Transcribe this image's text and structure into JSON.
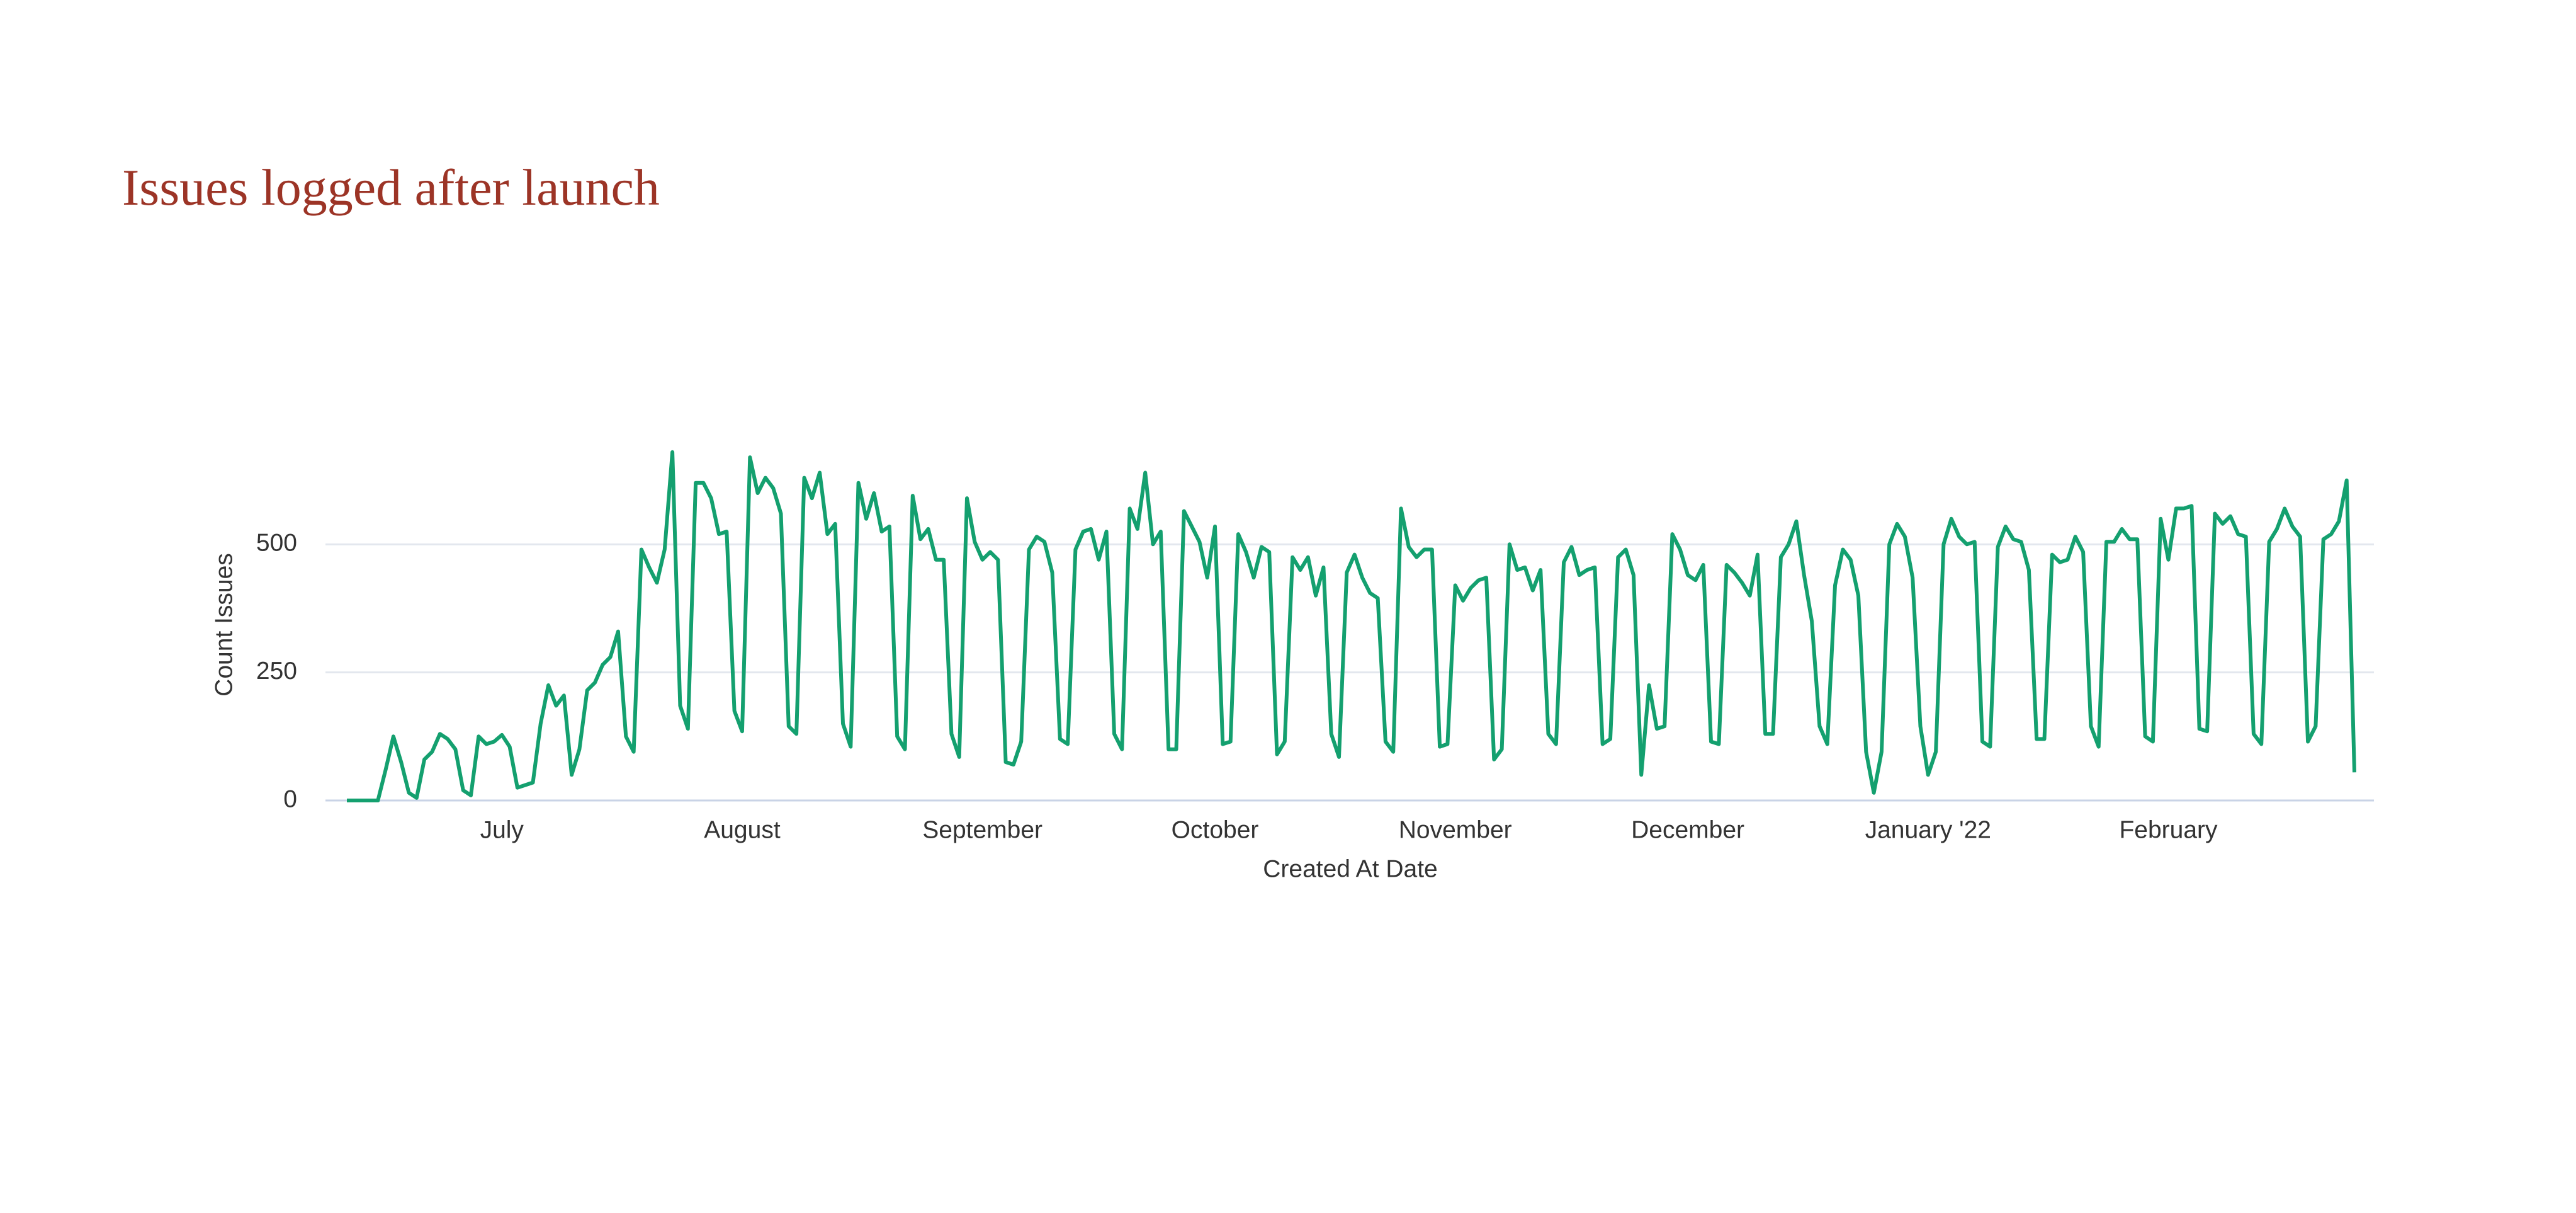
{
  "chart_data": {
    "type": "line",
    "title": "Issues logged after launch",
    "x_label": "Created At Date",
    "y_label": "Count Issues",
    "categories": [
      null,
      null,
      null,
      null,
      null,
      null,
      null,
      null,
      null,
      null,
      null,
      null,
      null,
      null,
      null,
      null,
      null,
      null,
      null,
      null,
      "July",
      null,
      null,
      null,
      null,
      null,
      null,
      null,
      null,
      null,
      null,
      null,
      null,
      null,
      null,
      null,
      null,
      null,
      null,
      null,
      null,
      null,
      null,
      null,
      null,
      null,
      null,
      null,
      null,
      null,
      null,
      "August",
      null,
      null,
      null,
      null,
      null,
      null,
      null,
      null,
      null,
      null,
      null,
      null,
      null,
      null,
      null,
      null,
      null,
      null,
      null,
      null,
      null,
      null,
      null,
      null,
      null,
      null,
      null,
      null,
      null,
      null,
      "September",
      null,
      null,
      null,
      null,
      null,
      null,
      null,
      null,
      null,
      null,
      null,
      null,
      null,
      null,
      null,
      null,
      null,
      null,
      null,
      null,
      null,
      null,
      null,
      null,
      null,
      null,
      null,
      null,
      null,
      "October",
      null,
      null,
      null,
      null,
      null,
      null,
      null,
      null,
      null,
      null,
      null,
      null,
      null,
      null,
      null,
      null,
      null,
      null,
      null,
      null,
      null,
      null,
      null,
      null,
      null,
      null,
      null,
      null,
      null,
      null,
      "November",
      null,
      null,
      null,
      null,
      null,
      null,
      null,
      null,
      null,
      null,
      null,
      null,
      null,
      null,
      null,
      null,
      null,
      null,
      null,
      null,
      null,
      null,
      null,
      null,
      null,
      null,
      null,
      null,
      null,
      "December",
      null,
      null,
      null,
      null,
      null,
      null,
      null,
      null,
      null,
      null,
      null,
      null,
      null,
      null,
      null,
      null,
      null,
      null,
      null,
      null,
      null,
      null,
      null,
      null,
      null,
      null,
      null,
      null,
      null,
      null,
      "January '22",
      null,
      null,
      null,
      null,
      null,
      null,
      null,
      null,
      null,
      null,
      null,
      null,
      null,
      null,
      null,
      null,
      null,
      null,
      null,
      null,
      null,
      null,
      null,
      null,
      null,
      null,
      null,
      null,
      null,
      null,
      "February",
      null,
      null,
      null,
      null,
      null,
      null,
      null,
      null,
      null,
      null,
      null,
      null,
      null,
      null,
      null,
      null,
      null,
      null,
      null,
      null,
      null,
      null,
      null,
      null
    ],
    "series": [
      {
        "name": "Count Issues",
        "color": "#14a06f",
        "values": [
          0,
          0,
          0,
          0,
          0,
          60,
          125,
          75,
          15,
          5,
          80,
          95,
          130,
          120,
          100,
          20,
          10,
          125,
          110,
          115,
          128,
          105,
          25,
          30,
          35,
          150,
          225,
          185,
          205,
          50,
          100,
          215,
          230,
          265,
          280,
          330,
          125,
          95,
          490,
          455,
          425,
          490,
          680,
          185,
          140,
          620,
          620,
          590,
          520,
          525,
          175,
          135,
          670,
          600,
          630,
          610,
          560,
          145,
          130,
          630,
          590,
          640,
          520,
          540,
          150,
          105,
          620,
          550,
          600,
          525,
          535,
          125,
          100,
          595,
          510,
          530,
          470,
          470,
          130,
          85,
          590,
          505,
          470,
          485,
          470,
          75,
          70,
          115,
          490,
          515,
          505,
          445,
          120,
          110,
          490,
          525,
          530,
          470,
          525,
          130,
          100,
          570,
          530,
          640,
          500,
          525,
          100,
          100,
          565,
          535,
          505,
          435,
          535,
          110,
          115,
          520,
          485,
          435,
          495,
          485,
          90,
          115,
          475,
          450,
          475,
          400,
          455,
          130,
          85,
          445,
          480,
          435,
          405,
          395,
          115,
          95,
          570,
          495,
          475,
          490,
          490,
          105,
          110,
          420,
          390,
          415,
          430,
          435,
          80,
          100,
          500,
          450,
          455,
          410,
          450,
          130,
          110,
          465,
          495,
          440,
          450,
          455,
          110,
          120,
          475,
          490,
          440,
          50,
          225,
          140,
          145,
          520,
          490,
          440,
          430,
          460,
          115,
          110,
          460,
          445,
          425,
          400,
          480,
          130,
          130,
          475,
          500,
          545,
          440,
          350,
          145,
          110,
          420,
          490,
          470,
          400,
          95,
          15,
          95,
          500,
          540,
          515,
          435,
          145,
          50,
          95,
          500,
          550,
          515,
          500,
          505,
          115,
          105,
          495,
          535,
          510,
          505,
          450,
          120,
          120,
          480,
          465,
          470,
          515,
          485,
          145,
          105,
          505,
          505,
          530,
          510,
          510,
          125,
          115,
          550,
          470,
          570,
          570,
          575,
          140,
          135,
          560,
          540,
          555,
          520,
          515,
          130,
          110,
          505,
          530,
          570,
          535,
          515,
          115,
          145,
          510,
          520,
          545,
          625,
          55
        ]
      }
    ],
    "ylim": [
      0,
      750
    ],
    "yticks": [
      0,
      250,
      500
    ],
    "grid": true
  }
}
